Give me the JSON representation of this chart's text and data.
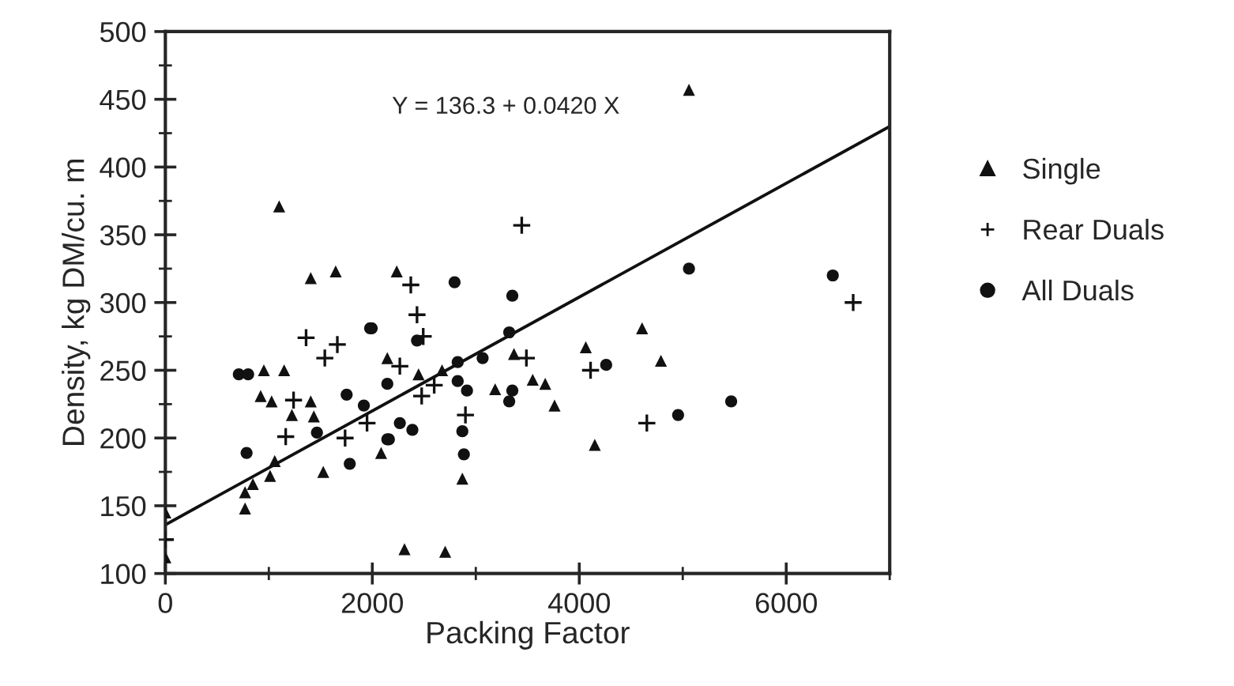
{
  "chart_data": {
    "type": "scatter",
    "xlabel": "Packing Factor",
    "ylabel": "Density, kg DM/cu. m",
    "xlim": [
      0,
      7000
    ],
    "xticks": [
      0,
      2000,
      4000,
      6000
    ],
    "ylim": [
      100,
      500
    ],
    "yticks": [
      100,
      150,
      200,
      250,
      300,
      350,
      400,
      450,
      500
    ],
    "grid": false,
    "legend": "right",
    "annotations": [
      "Y = 136.3 + 0.0420 X"
    ],
    "series": [
      {
        "name": "Single",
        "color": "#111111",
        "marker": "triangle",
        "x": [
          1100,
          1405,
          1646,
          2236,
          2145,
          921,
          1027,
          1405,
          1223,
          1435,
          952,
          1148,
          1012,
          846,
          770,
          770,
          1526,
          2085,
          0,
          0,
          1057,
          2447,
          2674,
          2870,
          2311,
          2704,
          3187,
          3369,
          3550,
          3671,
          3761,
          4063,
          4150,
          5060,
          4607,
          4789
        ],
        "values": [
          371,
          318,
          323,
          323,
          259,
          231,
          227,
          227,
          217,
          216,
          250,
          250,
          172,
          166,
          160,
          148,
          175,
          189,
          145,
          112,
          183,
          247,
          250,
          170,
          118,
          116,
          236,
          262,
          243,
          240,
          224,
          267,
          195,
          457,
          281,
          257
        ]
      },
      {
        "name": "Rear Duals",
        "color": "#111111",
        "marker": "cross",
        "x": [
          1360,
          1662,
          1541,
          1239,
          1163,
          1737,
          1949,
          0,
          3444,
          2372,
          2432,
          2492,
          2900,
          3489,
          4109,
          2477,
          2598,
          2266,
          6647,
          4653
        ],
        "values": [
          274,
          269,
          259,
          228,
          201,
          200,
          211,
          125,
          357,
          313,
          291,
          275,
          217,
          259,
          250,
          231,
          239,
          253,
          300,
          211
        ]
      },
      {
        "name": "All Duals",
        "color": "#111111",
        "marker": "circle",
        "x": [
          1994,
          710,
          800,
          1752,
          1918,
          2145,
          1465,
          2145,
          785,
          1782,
          2795,
          3353,
          1979,
          2432,
          3323,
          3066,
          2825,
          2825,
          2915,
          3353,
          3323,
          2266,
          2387,
          2160,
          2870,
          2885,
          5060,
          6450,
          4260,
          5468,
          4955
        ],
        "values": [
          281,
          247,
          247,
          232,
          224,
          240,
          204,
          199,
          189,
          181,
          315,
          305,
          281,
          272,
          278,
          259,
          256,
          242,
          235,
          235,
          227,
          211,
          206,
          199,
          205,
          188,
          325,
          320,
          254,
          227,
          217
        ]
      },
      {
        "type": "line",
        "color": "#111111",
        "marker": "none",
        "line_style": "solid",
        "x": [
          0,
          7000
        ],
        "values": [
          136,
          430
        ]
      }
    ]
  }
}
